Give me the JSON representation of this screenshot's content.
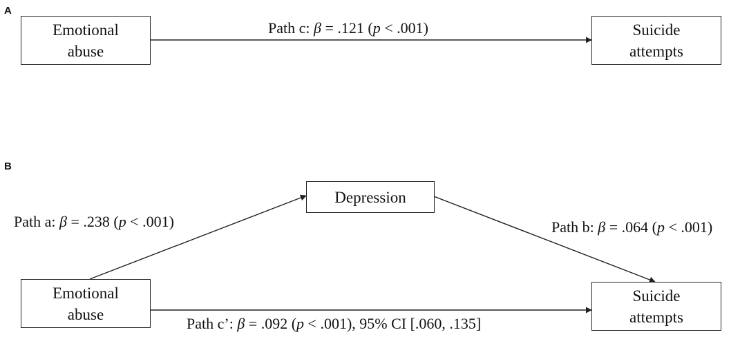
{
  "panels": {
    "a": {
      "label": "A",
      "nodes": {
        "x": {
          "line1": "Emotional",
          "line2": "abuse"
        },
        "y": {
          "line1": "Suicide",
          "line2": "attempts"
        }
      },
      "paths": {
        "c": {
          "prefix": "Path c: ",
          "beta_symbol": "β",
          "value": " = .121 (",
          "p_symbol": "p",
          "suffix": " < .001)"
        }
      }
    },
    "b": {
      "label": "B",
      "nodes": {
        "m": {
          "text": "Depression"
        },
        "x": {
          "line1": "Emotional",
          "line2": "abuse"
        },
        "y": {
          "line1": "Suicide",
          "line2": "attempts"
        }
      },
      "paths": {
        "a": {
          "prefix": "Path a: ",
          "beta_symbol": "β",
          "value": " = .238 (",
          "p_symbol": "p",
          "suffix": " < .001)"
        },
        "b": {
          "prefix": "Path b: ",
          "beta_symbol": "β",
          "value": " = .064 (",
          "p_symbol": "p",
          "suffix": " < .001)"
        },
        "c_prime": {
          "prefix": "Path c’: ",
          "beta_symbol": "β",
          "value": " = .092 (",
          "p_symbol": "p",
          "suffix": " < .001), 95% CI [.060, .135]"
        }
      }
    }
  },
  "colors": {
    "stroke": "#222222",
    "text": "#111111",
    "background": "#ffffff"
  }
}
